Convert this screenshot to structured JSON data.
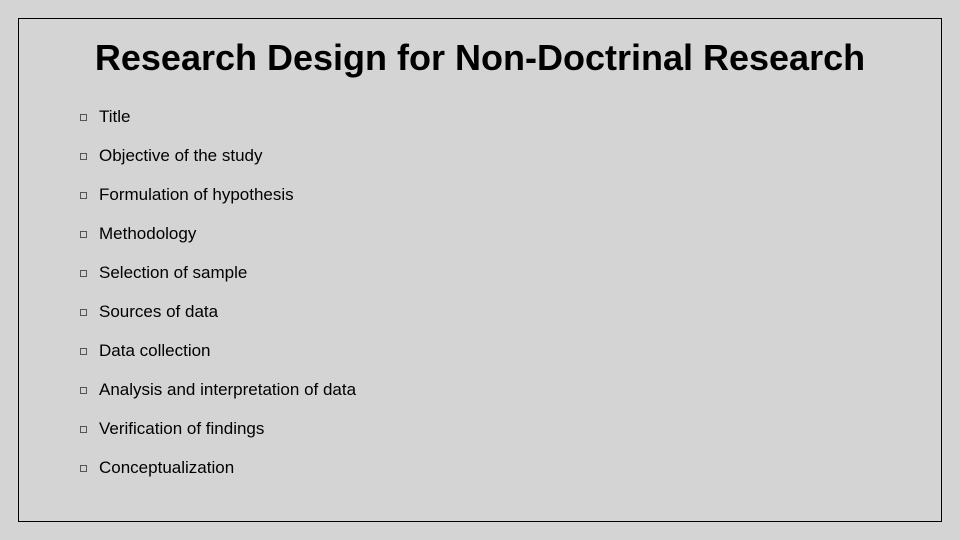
{
  "slide": {
    "title": "Research Design for Non-Doctrinal Research",
    "title_fontsize": 36,
    "title_fontweight": "bold",
    "title_color": "#000000",
    "background_color": "#d4d4d4",
    "border_color": "#000000",
    "item_fontsize": 17,
    "item_color": "#000000",
    "bullet_style": "hollow-square",
    "bullet_size": 7,
    "bullet_border_color": "#555555",
    "items": [
      "Title",
      "Objective of the study",
      "Formulation of hypothesis",
      "Methodology",
      "Selection of sample",
      "Sources of data",
      "Data collection",
      "Analysis and interpretation of data",
      "Verification of findings",
      "Conceptualization"
    ]
  }
}
